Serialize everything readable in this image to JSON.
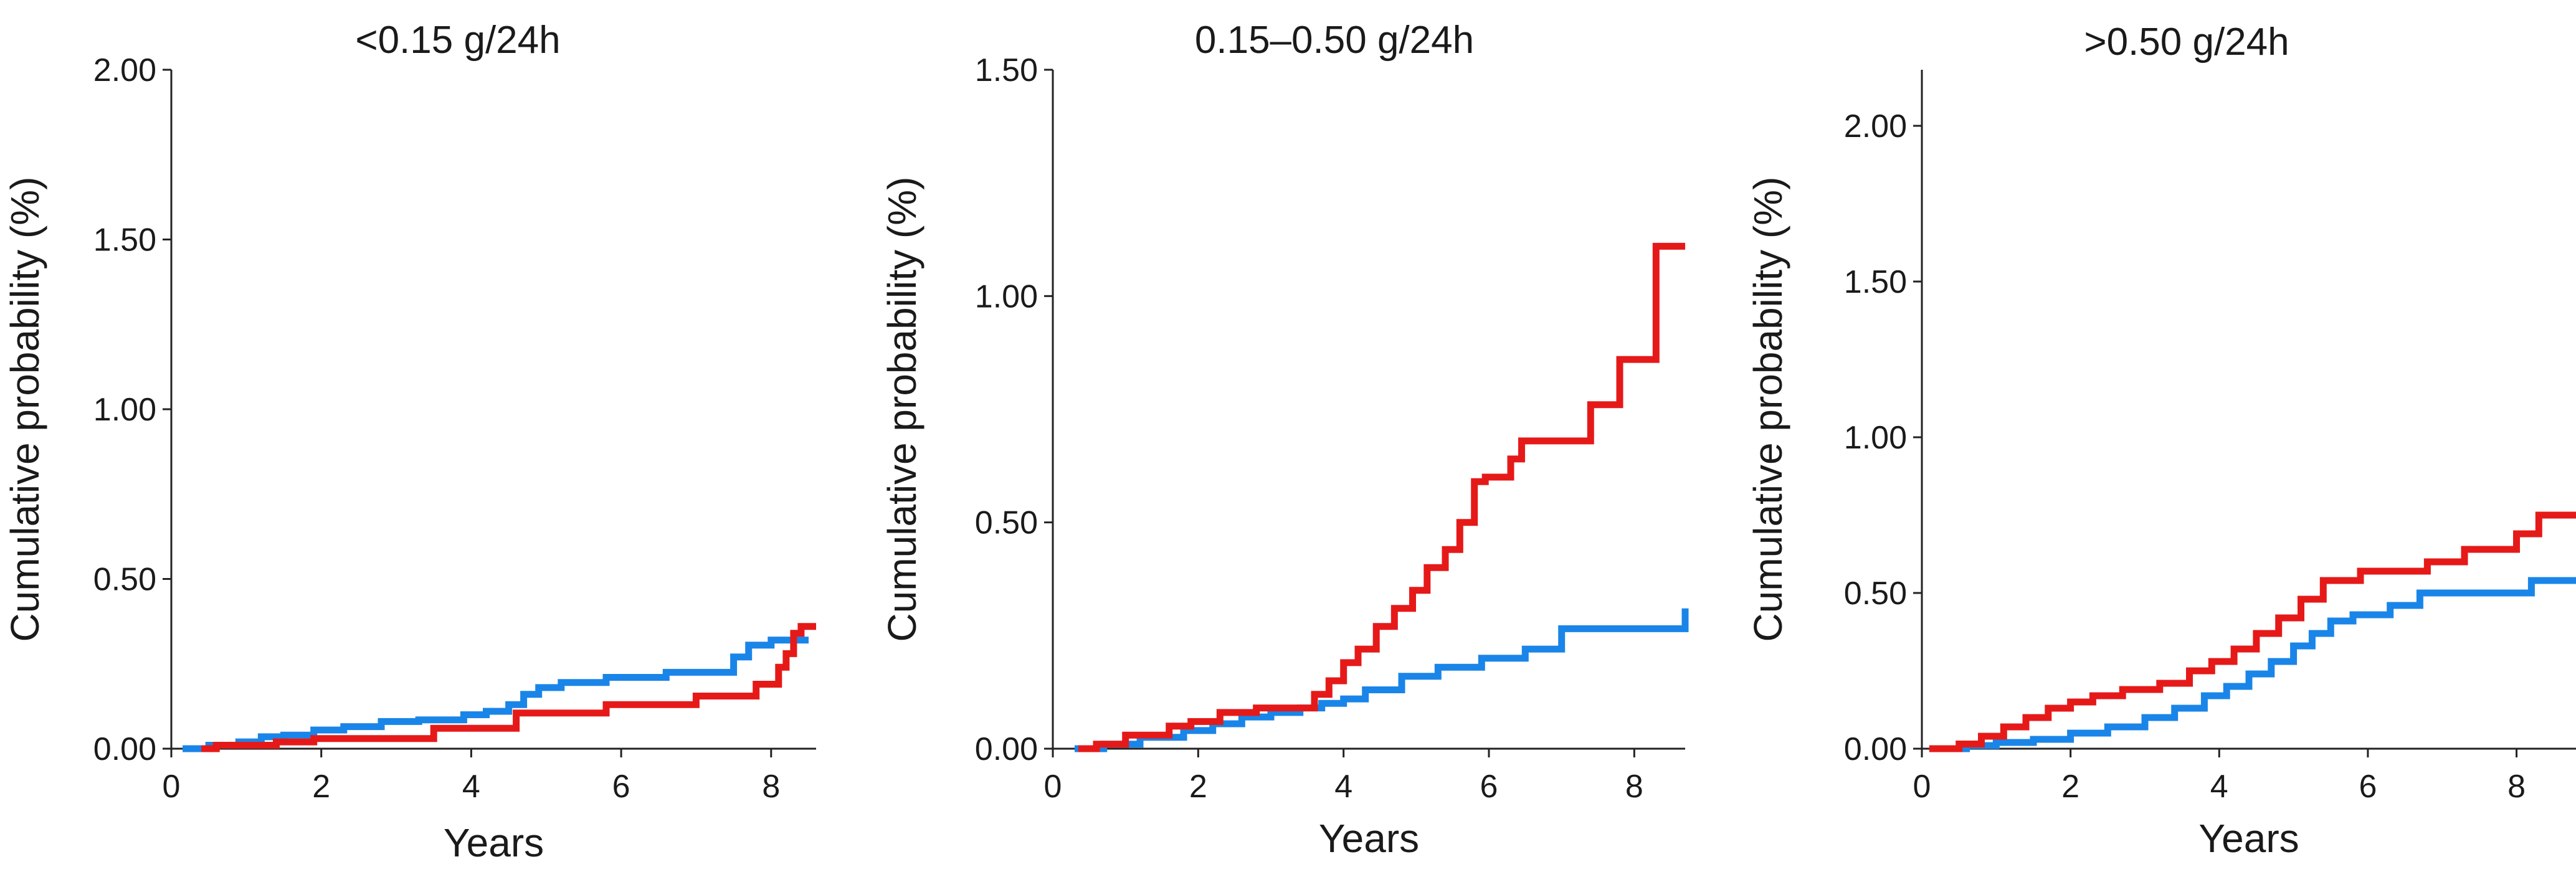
{
  "chart_data": [
    {
      "type": "line",
      "title": "<0.15 g/24h",
      "xlabel": "Years",
      "ylabel": "Cumulative probability (%)",
      "xlim": [
        0,
        8.6
      ],
      "ylim": [
        0,
        2.0
      ],
      "xticks": [
        0,
        2,
        4,
        6,
        8
      ],
      "xtick_labels": [
        "0",
        "2",
        "4",
        "6",
        "8"
      ],
      "yticks": [
        0,
        0.5,
        1.0,
        1.5,
        2.0
      ],
      "ytick_labels": [
        "0.00",
        "0.50",
        "1.00",
        "1.50",
        "2.00"
      ],
      "series": [
        {
          "name": "blue",
          "color": "#1a85e8",
          "x": [
            0.15,
            0.5,
            0.9,
            1.2,
            1.5,
            1.9,
            2.3,
            2.8,
            3.3,
            3.9,
            4.2,
            4.5,
            4.7,
            4.9,
            5.2,
            5.8,
            6.6,
            7.5,
            7.7,
            8.0,
            8.5
          ],
          "y": [
            0,
            0.01,
            0.02,
            0.035,
            0.04,
            0.055,
            0.065,
            0.08,
            0.085,
            0.1,
            0.11,
            0.13,
            0.16,
            0.18,
            0.195,
            0.21,
            0.225,
            0.27,
            0.305,
            0.32,
            0.32
          ]
        },
        {
          "name": "red",
          "color": "#e61919",
          "x": [
            0.4,
            0.6,
            1.4,
            1.9,
            3.5,
            4.6,
            5.8,
            7.0,
            7.8,
            8.1,
            8.2,
            8.3,
            8.4,
            8.6
          ],
          "y": [
            0,
            0.01,
            0.02,
            0.03,
            0.06,
            0.105,
            0.13,
            0.155,
            0.19,
            0.24,
            0.28,
            0.34,
            0.36,
            0.36
          ]
        }
      ]
    },
    {
      "type": "line",
      "title": "0.15–0.50 g/24h",
      "xlabel": "Years",
      "ylabel": "Cumulative probability (%)",
      "xlim": [
        0,
        8.7
      ],
      "ylim": [
        0,
        1.5
      ],
      "xticks": [
        0,
        2,
        4,
        6,
        8
      ],
      "xtick_labels": [
        "0",
        "2",
        "4",
        "6",
        "8"
      ],
      "yticks": [
        0,
        0.5,
        1.0,
        1.5
      ],
      "ytick_labels": [
        "0.00",
        "0.50",
        "1.00",
        "1.50"
      ],
      "series": [
        {
          "name": "blue",
          "color": "#1a85e8",
          "x": [
            0.3,
            0.7,
            1.2,
            1.8,
            2.2,
            2.6,
            3.0,
            3.4,
            3.7,
            4.0,
            4.3,
            4.8,
            5.3,
            5.9,
            6.5,
            7.0,
            7.5,
            8.7
          ],
          "y": [
            0,
            0.01,
            0.025,
            0.04,
            0.055,
            0.07,
            0.08,
            0.09,
            0.1,
            0.11,
            0.13,
            0.16,
            0.18,
            0.2,
            0.22,
            0.265,
            0.265,
            0.31
          ]
        },
        {
          "name": "red",
          "color": "#e61919",
          "x": [
            0.35,
            0.6,
            1.0,
            1.6,
            1.9,
            2.3,
            2.8,
            3.3,
            3.6,
            3.8,
            4.0,
            4.2,
            4.45,
            4.7,
            4.95,
            5.15,
            5.4,
            5.6,
            5.8,
            5.95,
            6.3,
            6.45,
            7.4,
            7.8,
            8.3,
            8.7
          ],
          "y": [
            0,
            0.01,
            0.03,
            0.05,
            0.06,
            0.08,
            0.09,
            0.09,
            0.12,
            0.15,
            0.19,
            0.22,
            0.27,
            0.31,
            0.35,
            0.4,
            0.44,
            0.5,
            0.59,
            0.6,
            0.64,
            0.68,
            0.76,
            0.86,
            1.11,
            1.11
          ]
        }
      ]
    },
    {
      "type": "line",
      "title": ">0.50 g/24h",
      "xlabel": "Years",
      "ylabel": "Cumulative probability (%)",
      "xlim": [
        0,
        8.8
      ],
      "ylim": [
        0,
        2.18
      ],
      "xticks": [
        0,
        2,
        4,
        6,
        8
      ],
      "xtick_labels": [
        "0",
        "2",
        "4",
        "6",
        "8"
      ],
      "yticks": [
        0,
        0.5,
        1.0,
        1.5,
        2.0
      ],
      "ytick_labels": [
        "0.00",
        "0.50",
        "1.00",
        "1.50",
        "2.00"
      ],
      "series": [
        {
          "name": "blue",
          "color": "#1a85e8",
          "x": [
            0.1,
            0.6,
            1.0,
            1.5,
            2.0,
            2.5,
            3.0,
            3.4,
            3.8,
            4.1,
            4.4,
            4.7,
            5.0,
            5.25,
            5.5,
            5.8,
            6.3,
            6.7,
            7.0,
            8.2,
            8.8
          ],
          "y": [
            0,
            0.01,
            0.02,
            0.03,
            0.05,
            0.07,
            0.1,
            0.13,
            0.17,
            0.2,
            0.24,
            0.28,
            0.33,
            0.37,
            0.41,
            0.43,
            0.46,
            0.5,
            0.5,
            0.54,
            0.54
          ]
        },
        {
          "name": "red",
          "color": "#e61919",
          "x": [
            0.1,
            0.5,
            0.8,
            1.1,
            1.4,
            1.7,
            2.0,
            2.3,
            2.7,
            3.2,
            3.6,
            3.9,
            4.2,
            4.5,
            4.8,
            5.1,
            5.4,
            5.9,
            6.8,
            7.3,
            8.0,
            8.3,
            8.8
          ],
          "y": [
            0,
            0.015,
            0.04,
            0.07,
            0.1,
            0.13,
            0.15,
            0.17,
            0.19,
            0.21,
            0.25,
            0.28,
            0.32,
            0.37,
            0.42,
            0.48,
            0.54,
            0.57,
            0.6,
            0.64,
            0.69,
            0.75,
            0.75
          ]
        }
      ]
    }
  ]
}
